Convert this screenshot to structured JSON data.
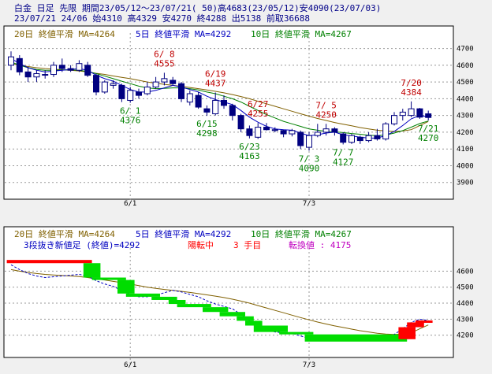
{
  "header": {
    "line1": "白金 日足 先限 期間23/05/12～23/07/21( 50)高4683(23/05/12)安4090(23/07/03)",
    "line2": "    23/07/21 24/06 始4310 高4329 安4270 終4288 出5138 前取36688"
  },
  "panels": {
    "top": {
      "legend": {
        "ma20": "20日 終値平滑 MA=4264",
        "ma5": "5日 終値平滑 MA=4292",
        "ma10": "10日 終値平滑 MA=4267"
      }
    },
    "bottom": {
      "legend": {
        "ma20": "20日 終値平滑 MA=4264",
        "ma5": "5日 終値平滑 MA=4292",
        "ma10": "10日 終値平滑 MA=4267"
      },
      "status": {
        "label": "3段抜き新値足 (終値)=4292",
        "trend": "陽転中",
        "count": "3 手目",
        "reversal": "転換値 : 4175"
      }
    }
  },
  "colors": {
    "up_candle": "#ffffff",
    "down_candle": "#000080",
    "candle_outline": "#000080",
    "ma5": "#0000c0",
    "ma10": "#008000",
    "ma20": "#806000",
    "high_label": "#c00000",
    "low_label": "#008000",
    "brick_up": "#ff0000",
    "brick_down": "#00dd00",
    "grid": "#999999"
  },
  "chart_data": [
    {
      "type": "candlestick",
      "y_ticks": [
        3900,
        4000,
        4100,
        4200,
        4300,
        4400,
        4500,
        4600,
        4700
      ],
      "ylim": [
        3880,
        4745
      ],
      "x_ticks": [
        "6/1",
        "7/3"
      ],
      "x_tick_index": [
        14,
        35
      ],
      "candles": [
        {
          "o": 4600,
          "h": 4683,
          "l": 4570,
          "c": 4650
        },
        {
          "o": 4640,
          "h": 4660,
          "l": 4540,
          "c": 4560
        },
        {
          "o": 4560,
          "h": 4590,
          "l": 4500,
          "c": 4530
        },
        {
          "o": 4530,
          "h": 4570,
          "l": 4500,
          "c": 4550
        },
        {
          "o": 4545,
          "h": 4570,
          "l": 4520,
          "c": 4545
        },
        {
          "o": 4545,
          "h": 4620,
          "l": 4530,
          "c": 4600
        },
        {
          "o": 4600,
          "h": 4640,
          "l": 4560,
          "c": 4580
        },
        {
          "o": 4580,
          "h": 4600,
          "l": 4560,
          "c": 4570
        },
        {
          "o": 4570,
          "h": 4630,
          "l": 4560,
          "c": 4610
        },
        {
          "o": 4600,
          "h": 4620,
          "l": 4530,
          "c": 4540
        },
        {
          "o": 4540,
          "h": 4550,
          "l": 4420,
          "c": 4440
        },
        {
          "o": 4440,
          "h": 4510,
          "l": 4430,
          "c": 4500
        },
        {
          "o": 4480,
          "h": 4510,
          "l": 4460,
          "c": 4490
        },
        {
          "o": 4480,
          "h": 4490,
          "l": 4380,
          "c": 4400
        },
        {
          "o": 4390,
          "h": 4470,
          "l": 4376,
          "c": 4450
        },
        {
          "o": 4440,
          "h": 4460,
          "l": 4400,
          "c": 4420
        },
        {
          "o": 4430,
          "h": 4500,
          "l": 4420,
          "c": 4470
        },
        {
          "o": 4470,
          "h": 4530,
          "l": 4460,
          "c": 4500
        },
        {
          "o": 4500,
          "h": 4555,
          "l": 4480,
          "c": 4520
        },
        {
          "o": 4510,
          "h": 4530,
          "l": 4480,
          "c": 4490
        },
        {
          "o": 4490,
          "h": 4500,
          "l": 4380,
          "c": 4400
        },
        {
          "o": 4380,
          "h": 4450,
          "l": 4360,
          "c": 4430
        },
        {
          "o": 4420,
          "h": 4440,
          "l": 4340,
          "c": 4350
        },
        {
          "o": 4340,
          "h": 4360,
          "l": 4298,
          "c": 4320
        },
        {
          "o": 4310,
          "h": 4437,
          "l": 4300,
          "c": 4390
        },
        {
          "o": 4390,
          "h": 4420,
          "l": 4340,
          "c": 4360
        },
        {
          "o": 4360,
          "h": 4370,
          "l": 4270,
          "c": 4300
        },
        {
          "o": 4300,
          "h": 4310,
          "l": 4200,
          "c": 4220
        },
        {
          "o": 4220,
          "h": 4240,
          "l": 4163,
          "c": 4180
        },
        {
          "o": 4170,
          "h": 4255,
          "l": 4160,
          "c": 4230
        },
        {
          "o": 4230,
          "h": 4255,
          "l": 4210,
          "c": 4215
        },
        {
          "o": 4210,
          "h": 4230,
          "l": 4200,
          "c": 4215
        },
        {
          "o": 4210,
          "h": 4215,
          "l": 4170,
          "c": 4190
        },
        {
          "o": 4190,
          "h": 4220,
          "l": 4175,
          "c": 4210
        },
        {
          "o": 4200,
          "h": 4210,
          "l": 4100,
          "c": 4120
        },
        {
          "o": 4110,
          "h": 4200,
          "l": 4090,
          "c": 4180
        },
        {
          "o": 4180,
          "h": 4250,
          "l": 4170,
          "c": 4200
        },
        {
          "o": 4200,
          "h": 4250,
          "l": 4180,
          "c": 4220
        },
        {
          "o": 4220,
          "h": 4230,
          "l": 4180,
          "c": 4200
        },
        {
          "o": 4190,
          "h": 4200,
          "l": 4127,
          "c": 4140
        },
        {
          "o": 4140,
          "h": 4190,
          "l": 4130,
          "c": 4180
        },
        {
          "o": 4170,
          "h": 4180,
          "l": 4130,
          "c": 4150
        },
        {
          "o": 4150,
          "h": 4200,
          "l": 4140,
          "c": 4180
        },
        {
          "o": 4180,
          "h": 4220,
          "l": 4150,
          "c": 4160
        },
        {
          "o": 4160,
          "h": 4260,
          "l": 4150,
          "c": 4250
        },
        {
          "o": 4250,
          "h": 4320,
          "l": 4240,
          "c": 4300
        },
        {
          "o": 4300,
          "h": 4340,
          "l": 4270,
          "c": 4320
        },
        {
          "o": 4300,
          "h": 4384,
          "l": 4290,
          "c": 4340
        },
        {
          "o": 4340,
          "h": 4345,
          "l": 4280,
          "c": 4290
        },
        {
          "o": 4310,
          "h": 4329,
          "l": 4270,
          "c": 4288
        }
      ],
      "ma5": [
        4640,
        4610,
        4585,
        4570,
        4560,
        4565,
        4570,
        4575,
        4580,
        4570,
        4540,
        4520,
        4505,
        4480,
        4455,
        4440,
        4440,
        4450,
        4465,
        4480,
        4470,
        4455,
        4440,
        4415,
        4395,
        4380,
        4365,
        4330,
        4290,
        4260,
        4235,
        4220,
        4215,
        4212,
        4195,
        4180,
        4185,
        4195,
        4200,
        4185,
        4178,
        4170,
        4165,
        4165,
        4180,
        4205,
        4240,
        4280,
        4300,
        4292
      ],
      "ma10": [
        4620,
        4600,
        4585,
        4575,
        4570,
        4570,
        4572,
        4572,
        4570,
        4562,
        4550,
        4535,
        4520,
        4505,
        4490,
        4475,
        4465,
        4460,
        4462,
        4465,
        4465,
        4460,
        4452,
        4440,
        4430,
        4415,
        4400,
        4380,
        4355,
        4330,
        4305,
        4285,
        4265,
        4250,
        4235,
        4220,
        4212,
        4205,
        4202,
        4198,
        4192,
        4188,
        4182,
        4180,
        4183,
        4195,
        4210,
        4230,
        4252,
        4267
      ],
      "ma20": [
        4610,
        4600,
        4592,
        4585,
        4580,
        4576,
        4573,
        4570,
        4566,
        4560,
        4552,
        4545,
        4536,
        4528,
        4520,
        4510,
        4500,
        4492,
        4486,
        4480,
        4474,
        4467,
        4460,
        4452,
        4444,
        4435,
        4425,
        4413,
        4400,
        4385,
        4370,
        4355,
        4340,
        4325,
        4310,
        4296,
        4282,
        4270,
        4258,
        4248,
        4238,
        4228,
        4220,
        4212,
        4207,
        4205,
        4207,
        4215,
        4240,
        4264
      ],
      "annotations": [
        {
          "date": "6/ 1",
          "value": "4376",
          "i": 14,
          "kind": "low"
        },
        {
          "date": "6/ 8",
          "value": "4555",
          "i": 18,
          "kind": "high"
        },
        {
          "date": "6/15",
          "value": "4298",
          "i": 23,
          "kind": "low"
        },
        {
          "date": "6/19",
          "value": "4437",
          "i": 24,
          "kind": "high"
        },
        {
          "date": "6/23",
          "value": "4163",
          "i": 28,
          "kind": "low"
        },
        {
          "date": "6/27",
          "value": "4255",
          "i": 29,
          "kind": "high"
        },
        {
          "date": "7/ 3",
          "value": "4090",
          "i": 35,
          "kind": "low"
        },
        {
          "date": "7/ 5",
          "value": "4250",
          "i": 37,
          "kind": "high"
        },
        {
          "date": "7/ 7",
          "value": "4127",
          "i": 39,
          "kind": "low"
        },
        {
          "date": "7/20",
          "value": "4384",
          "i": 47,
          "kind": "high"
        },
        {
          "date": "7/21",
          "value": "4270",
          "i": 49,
          "kind": "low"
        }
      ]
    },
    {
      "type": "three-line-break",
      "y_ticks": [
        4200,
        4300,
        4400,
        4500,
        4600
      ],
      "ylim": [
        4110,
        4720
      ],
      "x_ticks": [
        "6/1",
        "7/3"
      ],
      "x_tick_index": [
        14,
        35
      ],
      "bricks": [
        {
          "i0": 0,
          "i1": 9,
          "lo": 4650,
          "hi": 4670,
          "dir": "up"
        },
        {
          "i0": 9,
          "i1": 10,
          "lo": 4560,
          "hi": 4650,
          "dir": "down"
        },
        {
          "i0": 10,
          "i1": 13,
          "lo": 4545,
          "hi": 4560,
          "dir": "down"
        },
        {
          "i0": 13,
          "i1": 14,
          "lo": 4460,
          "hi": 4545,
          "dir": "down"
        },
        {
          "i0": 14,
          "i1": 17,
          "lo": 4440,
          "hi": 4460,
          "dir": "down"
        },
        {
          "i0": 17,
          "i1": 19,
          "lo": 4420,
          "hi": 4440,
          "dir": "down"
        },
        {
          "i0": 19,
          "i1": 20,
          "lo": 4395,
          "hi": 4420,
          "dir": "down"
        },
        {
          "i0": 20,
          "i1": 23,
          "lo": 4375,
          "hi": 4395,
          "dir": "down"
        },
        {
          "i0": 23,
          "i1": 25,
          "lo": 4345,
          "hi": 4375,
          "dir": "down"
        },
        {
          "i0": 25,
          "i1": 27,
          "lo": 4318,
          "hi": 4345,
          "dir": "down"
        },
        {
          "i0": 27,
          "i1": 28,
          "lo": 4290,
          "hi": 4318,
          "dir": "down"
        },
        {
          "i0": 28,
          "i1": 29,
          "lo": 4260,
          "hi": 4290,
          "dir": "down"
        },
        {
          "i0": 29,
          "i1": 32,
          "lo": 4220,
          "hi": 4260,
          "dir": "down"
        },
        {
          "i0": 32,
          "i1": 35,
          "lo": 4205,
          "hi": 4220,
          "dir": "down"
        },
        {
          "i0": 35,
          "i1": 46,
          "lo": 4160,
          "hi": 4205,
          "dir": "down"
        },
        {
          "i0": 46,
          "i1": 47,
          "lo": 4175,
          "hi": 4250,
          "dir": "up"
        },
        {
          "i0": 47,
          "i1": 48,
          "lo": 4250,
          "hi": 4280,
          "dir": "up"
        },
        {
          "i0": 48,
          "i1": 50,
          "lo": 4280,
          "hi": 4292,
          "dir": "up"
        }
      ]
    }
  ]
}
